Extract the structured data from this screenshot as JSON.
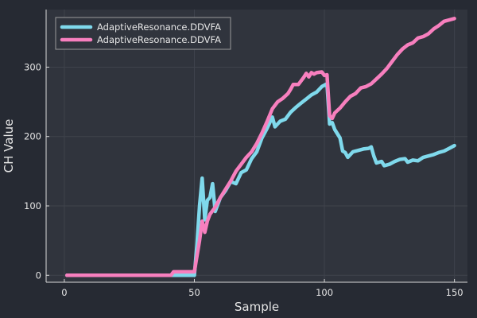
{
  "chart_data": {
    "type": "line",
    "title": "",
    "xlabel": "Sample",
    "ylabel": "CH Value",
    "xlim": [
      -7,
      155
    ],
    "ylim": [
      -10,
      383
    ],
    "xticks": [
      0,
      50,
      100,
      150
    ],
    "yticks": [
      0,
      100,
      200,
      300
    ],
    "grid": true,
    "legend_position": "top-left",
    "colors": {
      "background": "#262a33",
      "plot_background": "#30343d",
      "grid": "#3f434c",
      "axis": "#d8d8d8",
      "text": "#e6e6e6"
    },
    "series": [
      {
        "name": "AdaptiveResonance.DDVFA",
        "color": "#7fd9ec",
        "points": [
          [
            1,
            0
          ],
          [
            10,
            0
          ],
          [
            20,
            0
          ],
          [
            30,
            0
          ],
          [
            40,
            0
          ],
          [
            50,
            0
          ],
          [
            51,
            45
          ],
          [
            52,
            100
          ],
          [
            53,
            140
          ],
          [
            54,
            80
          ],
          [
            55,
            108
          ],
          [
            56,
            112
          ],
          [
            57,
            132
          ],
          [
            58,
            92
          ],
          [
            60,
            112
          ],
          [
            62,
            122
          ],
          [
            64,
            135
          ],
          [
            66,
            132
          ],
          [
            68,
            148
          ],
          [
            70,
            152
          ],
          [
            72,
            168
          ],
          [
            74,
            178
          ],
          [
            76,
            198
          ],
          [
            78,
            212
          ],
          [
            80,
            228
          ],
          [
            81,
            214
          ],
          [
            83,
            222
          ],
          [
            85,
            225
          ],
          [
            87,
            235
          ],
          [
            89,
            242
          ],
          [
            91,
            248
          ],
          [
            93,
            254
          ],
          [
            95,
            260
          ],
          [
            97,
            264
          ],
          [
            99,
            272
          ],
          [
            101,
            276
          ],
          [
            102,
            218
          ],
          [
            103,
            220
          ],
          [
            104,
            210
          ],
          [
            106,
            198
          ],
          [
            107,
            179
          ],
          [
            108,
            177
          ],
          [
            109,
            170
          ],
          [
            111,
            178
          ],
          [
            113,
            180
          ],
          [
            115,
            182
          ],
          [
            117,
            183
          ],
          [
            118,
            185
          ],
          [
            119,
            172
          ],
          [
            120,
            162
          ],
          [
            122,
            164
          ],
          [
            123,
            158
          ],
          [
            125,
            160
          ],
          [
            127,
            164
          ],
          [
            129,
            167
          ],
          [
            131,
            168
          ],
          [
            132,
            163
          ],
          [
            134,
            166
          ],
          [
            136,
            165
          ],
          [
            138,
            170
          ],
          [
            140,
            172
          ],
          [
            142,
            174
          ],
          [
            144,
            177
          ],
          [
            146,
            179
          ],
          [
            148,
            183
          ],
          [
            150,
            187
          ]
        ]
      },
      {
        "name": "AdaptiveResonance.DDVFA",
        "color": "#f77fbe",
        "points": [
          [
            1,
            0
          ],
          [
            10,
            0
          ],
          [
            20,
            0
          ],
          [
            30,
            0
          ],
          [
            41,
            0
          ],
          [
            42,
            5
          ],
          [
            50,
            5
          ],
          [
            51,
            28
          ],
          [
            52,
            50
          ],
          [
            53,
            78
          ],
          [
            54,
            62
          ],
          [
            55,
            78
          ],
          [
            56,
            88
          ],
          [
            58,
            98
          ],
          [
            60,
            112
          ],
          [
            62,
            124
          ],
          [
            64,
            136
          ],
          [
            66,
            150
          ],
          [
            68,
            160
          ],
          [
            70,
            170
          ],
          [
            72,
            178
          ],
          [
            74,
            190
          ],
          [
            76,
            205
          ],
          [
            78,
            222
          ],
          [
            80,
            240
          ],
          [
            82,
            250
          ],
          [
            84,
            255
          ],
          [
            86,
            262
          ],
          [
            87,
            268
          ],
          [
            88,
            275
          ],
          [
            90,
            275
          ],
          [
            92,
            285
          ],
          [
            93,
            291
          ],
          [
            94,
            286
          ],
          [
            95,
            292
          ],
          [
            96,
            290
          ],
          [
            97,
            292
          ],
          [
            99,
            293
          ],
          [
            100,
            288
          ],
          [
            101,
            289
          ],
          [
            102,
            230
          ],
          [
            103,
            226
          ],
          [
            104,
            234
          ],
          [
            106,
            241
          ],
          [
            108,
            250
          ],
          [
            110,
            258
          ],
          [
            112,
            262
          ],
          [
            114,
            270
          ],
          [
            116,
            272
          ],
          [
            118,
            276
          ],
          [
            120,
            283
          ],
          [
            122,
            290
          ],
          [
            124,
            298
          ],
          [
            126,
            308
          ],
          [
            128,
            318
          ],
          [
            130,
            326
          ],
          [
            132,
            332
          ],
          [
            134,
            335
          ],
          [
            136,
            342
          ],
          [
            138,
            344
          ],
          [
            140,
            348
          ],
          [
            142,
            355
          ],
          [
            144,
            360
          ],
          [
            146,
            366
          ],
          [
            148,
            368
          ],
          [
            150,
            370
          ]
        ]
      }
    ]
  }
}
